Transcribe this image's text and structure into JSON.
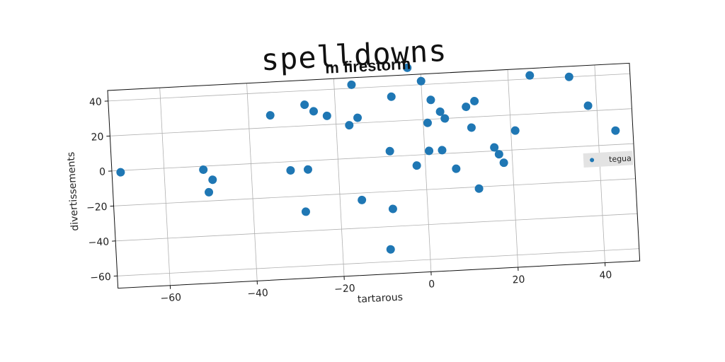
{
  "chart_data": {
    "type": "scatter",
    "suptitle": "spelldowns",
    "title": "m firestorm",
    "xlabel": "tartarous",
    "ylabel": "divertissements",
    "xlim": [
      -72,
      48
    ],
    "ylim": [
      -67,
      46
    ],
    "xticks": [
      -60,
      -40,
      -20,
      0,
      20,
      40
    ],
    "yticks": [
      -60,
      -40,
      -20,
      0,
      20,
      40
    ],
    "grid": true,
    "legend_position": "right",
    "series": [
      {
        "name": "tegua",
        "color": "#1f77b4",
        "points": [
          {
            "x": -70,
            "y": -1
          },
          {
            "x": -51,
            "y": -2
          },
          {
            "x": -50,
            "y": -15
          },
          {
            "x": -49,
            "y": -8
          },
          {
            "x": -35,
            "y": 27
          },
          {
            "x": -31,
            "y": -5
          },
          {
            "x": -28,
            "y": -29
          },
          {
            "x": -27,
            "y": 32
          },
          {
            "x": -27,
            "y": -5
          },
          {
            "x": -25,
            "y": 28
          },
          {
            "x": -22,
            "y": 25
          },
          {
            "x": -17,
            "y": 19
          },
          {
            "x": -16,
            "y": 42
          },
          {
            "x": -15,
            "y": 23
          },
          {
            "x": -15,
            "y": -24
          },
          {
            "x": -8,
            "y": -30
          },
          {
            "x": -8,
            "y": 3
          },
          {
            "x": -7,
            "y": 34
          },
          {
            "x": -9,
            "y": -53
          },
          {
            "x": -3,
            "y": 50
          },
          {
            "x": -2,
            "y": -6
          },
          {
            "x": 0,
            "y": 42
          },
          {
            "x": 1,
            "y": 18
          },
          {
            "x": 1,
            "y": 2
          },
          {
            "x": 2,
            "y": 31
          },
          {
            "x": 4,
            "y": 24
          },
          {
            "x": 4,
            "y": 2
          },
          {
            "x": 5,
            "y": 20
          },
          {
            "x": 7,
            "y": -9
          },
          {
            "x": 10,
            "y": 26
          },
          {
            "x": 11,
            "y": 14
          },
          {
            "x": 12,
            "y": 29
          },
          {
            "x": 12,
            "y": -21
          },
          {
            "x": 16,
            "y": 2
          },
          {
            "x": 17,
            "y": -2
          },
          {
            "x": 18,
            "y": -7
          },
          {
            "x": 21,
            "y": 11
          },
          {
            "x": 25,
            "y": 42
          },
          {
            "x": 34,
            "y": 40
          },
          {
            "x": 38,
            "y": 23
          },
          {
            "x": 44,
            "y": 8
          }
        ]
      }
    ]
  }
}
